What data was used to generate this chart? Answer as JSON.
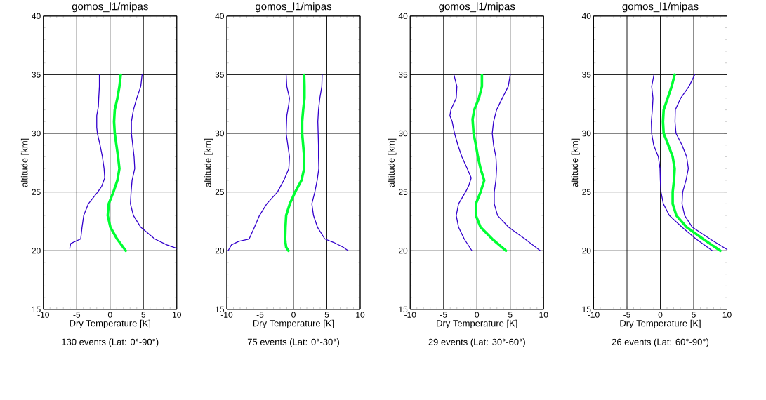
{
  "chart_data": [
    {
      "type": "line",
      "title": "gomos_l1/mipas",
      "xlabel": "Dry Temperature [K]",
      "ylabel": "altitude [km]",
      "annotations": [
        "130 events (Lat: 0°-90°)"
      ],
      "xlim": [
        -10,
        10
      ],
      "xticks": [
        -10,
        -5,
        0,
        5,
        10
      ],
      "ylim": [
        15,
        40
      ],
      "yticks": [
        15,
        20,
        25,
        30,
        35,
        40
      ],
      "grid": true,
      "marker": "none",
      "line_style": "solid",
      "series": [
        {
          "color": "#3300cc",
          "x": [
            -1.6,
            -1.6,
            -1.7,
            -1.75,
            -2.0,
            -2.0,
            -1.9,
            -1.5,
            -1.15,
            -0.9,
            -0.8,
            -1.25,
            -1.85,
            -3.25,
            -3.95,
            -4.2,
            -4.4,
            -5.2,
            -5.9,
            -6.05
          ],
          "values": [
            35,
            34,
            33,
            32.3,
            31.5,
            30.5,
            30,
            29,
            28,
            27,
            26.2,
            25.5,
            25,
            24,
            23,
            22,
            21,
            20.8,
            20.6,
            20.2
          ]
        },
        {
          "color": "#00ff33",
          "x": [
            1.6,
            1.4,
            1.1,
            0.7,
            0.6,
            0.7,
            0.95,
            1.2,
            1.4,
            1.1,
            0.5,
            -0.2,
            -0.35,
            0.05,
            1.05,
            2.35
          ],
          "values": [
            35,
            34,
            33,
            32,
            31,
            30,
            29,
            28,
            27,
            26,
            25,
            24,
            23,
            22,
            21,
            20
          ]
        },
        {
          "color": "#3300cc",
          "x": [
            4.8,
            4.6,
            4.0,
            3.5,
            3.2,
            3.2,
            3.4,
            3.6,
            3.7,
            3.3,
            3.15,
            3.05,
            3.5,
            4.6,
            6.7,
            8.5,
            10
          ],
          "values": [
            35,
            34,
            33,
            32,
            31,
            30,
            29,
            28,
            27,
            26,
            25,
            24,
            23,
            22,
            21,
            20.5,
            20.2
          ]
        }
      ]
    },
    {
      "type": "line",
      "title": "gomos_l1/mipas",
      "xlabel": "Dry Temperature [K]",
      "ylabel": "altitude [km]",
      "annotations": [
        "75 events (Lat: 0°-30°)"
      ],
      "xlim": [
        -10,
        10
      ],
      "xticks": [
        -10,
        -5,
        0,
        5,
        10
      ],
      "ylim": [
        15,
        40
      ],
      "yticks": [
        15,
        20,
        25,
        30,
        35,
        40
      ],
      "grid": true,
      "marker": "none",
      "line_style": "solid",
      "series": [
        {
          "color": "#3300cc",
          "x": [
            -1.1,
            -1.0,
            -0.6,
            -0.7,
            -1.0,
            -1.1,
            -0.85,
            -0.6,
            -0.7,
            -1.45,
            -2.4,
            -4.0,
            -5.1,
            -5.85,
            -6.65,
            -8.2,
            -9.3,
            -9.8
          ],
          "values": [
            35,
            34,
            33,
            32.5,
            31.5,
            30,
            29,
            28,
            27,
            26,
            25,
            24,
            23,
            22,
            21,
            20.8,
            20.5,
            20
          ]
        },
        {
          "color": "#00ff33",
          "x": [
            1.6,
            1.65,
            1.65,
            1.45,
            1.3,
            1.3,
            1.45,
            1.6,
            1.6,
            1.2,
            0.25,
            -0.55,
            -1.1,
            -1.2,
            -1.25,
            -1.2,
            -1.1,
            -0.75
          ],
          "values": [
            35,
            34,
            33,
            32,
            31,
            30,
            29,
            28,
            27,
            26,
            25,
            24,
            23,
            22,
            21,
            20.7,
            20.3,
            20
          ]
        },
        {
          "color": "#3300cc",
          "x": [
            4.3,
            4.25,
            3.95,
            3.75,
            3.65,
            3.7,
            3.75,
            3.75,
            3.8,
            3.55,
            3.2,
            2.75,
            3.0,
            3.6,
            4.7,
            6.05,
            7.45,
            8.2
          ],
          "values": [
            35,
            34,
            33,
            32,
            31,
            30,
            29,
            28,
            27,
            26,
            25,
            24,
            23,
            22,
            21,
            20.7,
            20.3,
            20
          ]
        }
      ]
    },
    {
      "type": "line",
      "title": "gomos_l1/mipas",
      "xlabel": "Dry Temperature [K]",
      "ylabel": "altitude [km]",
      "annotations": [
        "29 events (Lat: 30°-60°)"
      ],
      "xlim": [
        -10,
        10
      ],
      "xticks": [
        -10,
        -5,
        0,
        5,
        10
      ],
      "ylim": [
        15,
        40
      ],
      "yticks": [
        15,
        20,
        25,
        30,
        35,
        40
      ],
      "grid": true,
      "marker": "none",
      "line_style": "solid",
      "series": [
        {
          "color": "#3300cc",
          "x": [
            -3.45,
            -3.0,
            -3.1,
            -3.9,
            -4.05,
            -3.7,
            -3.35,
            -2.85,
            -2.25,
            -1.45,
            -0.85,
            -1.25,
            -1.7,
            -2.75,
            -3.1,
            -2.75,
            -1.9,
            -0.75
          ],
          "values": [
            35,
            34,
            33,
            32,
            31.5,
            31,
            30,
            29,
            28,
            27,
            26.2,
            25.5,
            25,
            24,
            23,
            22,
            21,
            20
          ]
        },
        {
          "color": "#00ff33",
          "x": [
            0.75,
            0.75,
            0.3,
            -0.4,
            -0.65,
            -0.5,
            -0.15,
            0.15,
            0.55,
            1.1,
            0.55,
            -0.15,
            -0.15,
            0.55,
            2.3,
            4.35
          ],
          "values": [
            35,
            34,
            33,
            32,
            31.2,
            30,
            29,
            28,
            27,
            26,
            25,
            24,
            23,
            22,
            21,
            20
          ]
        },
        {
          "color": "#3300cc",
          "x": [
            5.0,
            4.7,
            3.8,
            2.95,
            2.5,
            2.3,
            2.5,
            2.85,
            2.95,
            2.85,
            2.6,
            2.6,
            3.1,
            4.75,
            7.2,
            9.5
          ],
          "values": [
            35,
            34,
            33,
            32,
            31,
            30,
            29,
            28,
            27,
            26,
            25,
            24,
            23,
            22,
            21,
            20
          ]
        }
      ]
    },
    {
      "type": "line",
      "title": "gomos_l1/mipas",
      "xlabel": "Dry Temperature [K]",
      "ylabel": "altitude [km]",
      "annotations": [
        "26 events (Lat: 60°-90°)"
      ],
      "xlim": [
        -10,
        10
      ],
      "xticks": [
        -10,
        -5,
        0,
        5,
        10
      ],
      "ylim": [
        15,
        40
      ],
      "yticks": [
        15,
        20,
        25,
        30,
        35,
        40
      ],
      "grid": true,
      "marker": "none",
      "line_style": "solid",
      "series": [
        {
          "color": "#3300cc",
          "x": [
            -0.95,
            -1.3,
            -1.1,
            -1.2,
            -1.35,
            -1.3,
            -1.0,
            -0.3,
            -0.05,
            0,
            0.1,
            0.45,
            1.35,
            3.25,
            5.35,
            7.8
          ],
          "values": [
            35,
            34,
            33,
            32,
            31,
            30,
            29,
            28,
            27,
            26,
            25,
            24,
            23,
            22,
            21,
            20
          ]
        },
        {
          "color": "#00ff33",
          "x": [
            2.15,
            1.7,
            1.1,
            0.5,
            0.4,
            0.5,
            1.2,
            1.85,
            2.15,
            2.05,
            1.85,
            1.85,
            2.4,
            3.95,
            6.4,
            9.0
          ],
          "values": [
            35,
            34,
            33,
            32,
            31,
            30,
            29,
            28,
            27,
            26,
            25,
            24,
            23,
            22,
            21,
            20
          ]
        },
        {
          "color": "#3300cc",
          "x": [
            5.15,
            4.3,
            3.05,
            2.25,
            2.2,
            2.35,
            3.25,
            3.95,
            4.2,
            3.85,
            3.35,
            3.25,
            3.65,
            4.8,
            7.45,
            10
          ],
          "values": [
            35,
            34,
            33,
            32,
            31,
            30,
            29,
            28,
            27,
            26,
            25,
            24,
            23,
            22,
            21,
            20.1
          ]
        }
      ]
    }
  ]
}
